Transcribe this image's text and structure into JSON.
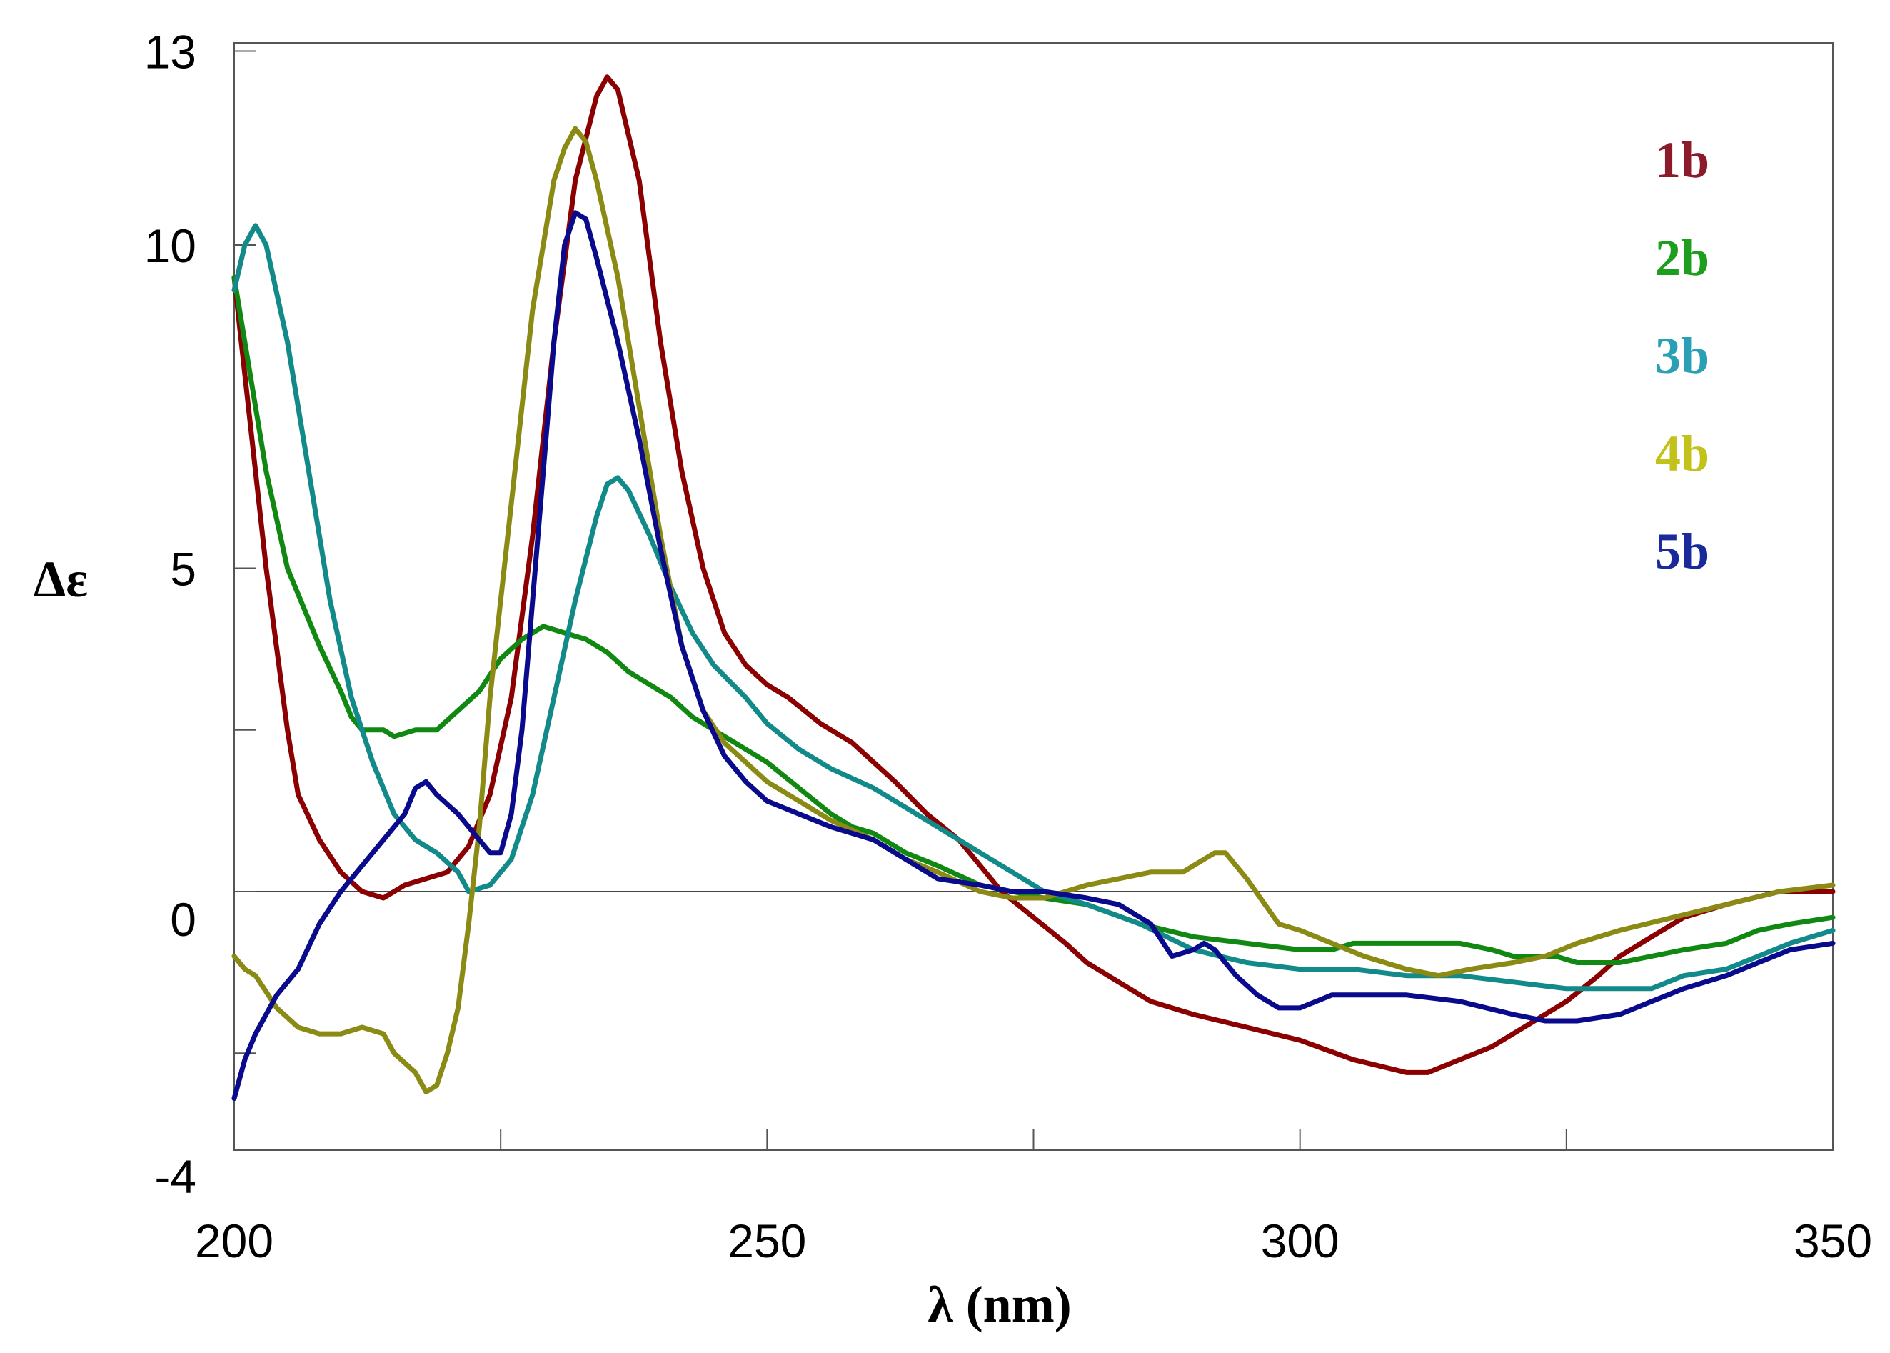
{
  "chart_data": {
    "type": "line",
    "title": "",
    "xlabel": "λ (nm)",
    "ylabel": "Δε",
    "xlim": [
      200,
      350
    ],
    "ylim": [
      -4,
      13.5
    ],
    "xticks": [
      200,
      250,
      300,
      350
    ],
    "xminorticks": [
      225,
      275,
      325
    ],
    "yticks": [
      13,
      10,
      5,
      0,
      -4
    ],
    "yminorticks": [
      2.5,
      -2.5
    ],
    "grid": false,
    "legend": "top-right",
    "series": [
      {
        "name": "1b",
        "color": "#8b0000",
        "label_color": "#8b1a2b",
        "points": [
          [
            200,
            9.5
          ],
          [
            201,
            8
          ],
          [
            203,
            5
          ],
          [
            205,
            2.5
          ],
          [
            206,
            1.5
          ],
          [
            208,
            0.8
          ],
          [
            210,
            0.3
          ],
          [
            212,
            0
          ],
          [
            214,
            -0.1
          ],
          [
            216,
            0.1
          ],
          [
            218,
            0.2
          ],
          [
            220,
            0.3
          ],
          [
            222,
            0.7
          ],
          [
            224,
            1.5
          ],
          [
            226,
            3
          ],
          [
            228,
            5.5
          ],
          [
            230,
            8.5
          ],
          [
            232,
            11
          ],
          [
            234,
            12.3
          ],
          [
            235,
            12.6
          ],
          [
            236,
            12.4
          ],
          [
            238,
            11
          ],
          [
            240,
            8.5
          ],
          [
            242,
            6.5
          ],
          [
            244,
            5
          ],
          [
            246,
            4
          ],
          [
            248,
            3.5
          ],
          [
            250,
            3.2
          ],
          [
            252,
            3
          ],
          [
            255,
            2.6
          ],
          [
            258,
            2.3
          ],
          [
            260,
            2
          ],
          [
            262,
            1.7
          ],
          [
            265,
            1.2
          ],
          [
            268,
            0.8
          ],
          [
            270,
            0.4
          ],
          [
            272,
            0
          ],
          [
            275,
            -0.4
          ],
          [
            278,
            -0.8
          ],
          [
            280,
            -1.1
          ],
          [
            283,
            -1.4
          ],
          [
            286,
            -1.7
          ],
          [
            290,
            -1.9
          ],
          [
            295,
            -2.1
          ],
          [
            300,
            -2.3
          ],
          [
            305,
            -2.6
          ],
          [
            310,
            -2.8
          ],
          [
            312,
            -2.8
          ],
          [
            315,
            -2.6
          ],
          [
            318,
            -2.4
          ],
          [
            320,
            -2.2
          ],
          [
            322,
            -2
          ],
          [
            325,
            -1.7
          ],
          [
            328,
            -1.3
          ],
          [
            330,
            -1
          ],
          [
            333,
            -0.7
          ],
          [
            336,
            -0.4
          ],
          [
            340,
            -0.2
          ],
          [
            345,
            0
          ],
          [
            350,
            0
          ]
        ]
      },
      {
        "name": "2b",
        "color": "#118811",
        "label_color": "#1e9e1e",
        "points": [
          [
            200,
            9.5
          ],
          [
            201,
            8.5
          ],
          [
            203,
            6.5
          ],
          [
            205,
            5
          ],
          [
            208,
            3.8
          ],
          [
            210,
            3.1
          ],
          [
            211,
            2.7
          ],
          [
            212,
            2.5
          ],
          [
            214,
            2.5
          ],
          [
            215,
            2.4
          ],
          [
            217,
            2.5
          ],
          [
            219,
            2.5
          ],
          [
            221,
            2.8
          ],
          [
            223,
            3.1
          ],
          [
            225,
            3.6
          ],
          [
            227,
            3.9
          ],
          [
            229,
            4.1
          ],
          [
            231,
            4
          ],
          [
            233,
            3.9
          ],
          [
            235,
            3.7
          ],
          [
            237,
            3.4
          ],
          [
            239,
            3.2
          ],
          [
            241,
            3
          ],
          [
            243,
            2.7
          ],
          [
            245,
            2.5
          ],
          [
            247,
            2.3
          ],
          [
            250,
            2
          ],
          [
            253,
            1.6
          ],
          [
            256,
            1.2
          ],
          [
            258,
            1
          ],
          [
            260,
            0.9
          ],
          [
            263,
            0.6
          ],
          [
            266,
            0.4
          ],
          [
            270,
            0.1
          ],
          [
            273,
            0
          ],
          [
            276,
            -0.1
          ],
          [
            280,
            -0.2
          ],
          [
            285,
            -0.5
          ],
          [
            290,
            -0.7
          ],
          [
            295,
            -0.8
          ],
          [
            300,
            -0.9
          ],
          [
            303,
            -0.9
          ],
          [
            305,
            -0.8
          ],
          [
            310,
            -0.8
          ],
          [
            315,
            -0.8
          ],
          [
            318,
            -0.9
          ],
          [
            320,
            -1
          ],
          [
            322,
            -1
          ],
          [
            324,
            -1
          ],
          [
            326,
            -1.1
          ],
          [
            328,
            -1.1
          ],
          [
            330,
            -1.1
          ],
          [
            333,
            -1
          ],
          [
            336,
            -0.9
          ],
          [
            340,
            -0.8
          ],
          [
            343,
            -0.6
          ],
          [
            346,
            -0.5
          ],
          [
            350,
            -0.4
          ]
        ]
      },
      {
        "name": "3b",
        "color": "#138a8a",
        "label_color": "#2aa0b5",
        "points": [
          [
            200,
            9.3
          ],
          [
            201,
            10
          ],
          [
            202,
            10.3
          ],
          [
            203,
            10
          ],
          [
            205,
            8.5
          ],
          [
            207,
            6.5
          ],
          [
            209,
            4.5
          ],
          [
            211,
            3
          ],
          [
            213,
            2
          ],
          [
            215,
            1.2
          ],
          [
            217,
            0.8
          ],
          [
            219,
            0.6
          ],
          [
            221,
            0.3
          ],
          [
            222,
            0
          ],
          [
            224,
            0.1
          ],
          [
            226,
            0.5
          ],
          [
            228,
            1.5
          ],
          [
            230,
            3
          ],
          [
            232,
            4.5
          ],
          [
            234,
            5.8
          ],
          [
            235,
            6.3
          ],
          [
            236,
            6.4
          ],
          [
            237,
            6.2
          ],
          [
            239,
            5.5
          ],
          [
            241,
            4.7
          ],
          [
            243,
            4
          ],
          [
            245,
            3.5
          ],
          [
            248,
            3
          ],
          [
            250,
            2.6
          ],
          [
            253,
            2.2
          ],
          [
            256,
            1.9
          ],
          [
            260,
            1.6
          ],
          [
            263,
            1.3
          ],
          [
            266,
            1
          ],
          [
            270,
            0.6
          ],
          [
            273,
            0.3
          ],
          [
            276,
            0
          ],
          [
            280,
            -0.2
          ],
          [
            285,
            -0.5
          ],
          [
            290,
            -0.9
          ],
          [
            295,
            -1.1
          ],
          [
            300,
            -1.2
          ],
          [
            305,
            -1.2
          ],
          [
            310,
            -1.3
          ],
          [
            315,
            -1.3
          ],
          [
            320,
            -1.4
          ],
          [
            325,
            -1.5
          ],
          [
            330,
            -1.5
          ],
          [
            333,
            -1.5
          ],
          [
            336,
            -1.3
          ],
          [
            340,
            -1.2
          ],
          [
            343,
            -1
          ],
          [
            346,
            -0.8
          ],
          [
            350,
            -0.6
          ]
        ]
      },
      {
        "name": "4b",
        "color": "#8a8a14",
        "label_color": "#c2c21a",
        "points": [
          [
            200,
            -1
          ],
          [
            201,
            -1.2
          ],
          [
            202,
            -1.3
          ],
          [
            204,
            -1.8
          ],
          [
            206,
            -2.1
          ],
          [
            208,
            -2.2
          ],
          [
            210,
            -2.2
          ],
          [
            212,
            -2.1
          ],
          [
            214,
            -2.2
          ],
          [
            215,
            -2.5
          ],
          [
            217,
            -2.8
          ],
          [
            218,
            -3.1
          ],
          [
            219,
            -3
          ],
          [
            220,
            -2.5
          ],
          [
            221,
            -1.8
          ],
          [
            222,
            -0.5
          ],
          [
            223,
            1
          ],
          [
            224,
            3
          ],
          [
            226,
            6
          ],
          [
            228,
            9
          ],
          [
            230,
            11
          ],
          [
            231,
            11.5
          ],
          [
            232,
            11.8
          ],
          [
            233,
            11.6
          ],
          [
            234,
            11
          ],
          [
            236,
            9.5
          ],
          [
            238,
            7.5
          ],
          [
            240,
            5.5
          ],
          [
            242,
            3.8
          ],
          [
            244,
            2.8
          ],
          [
            246,
            2.3
          ],
          [
            248,
            2
          ],
          [
            250,
            1.7
          ],
          [
            253,
            1.4
          ],
          [
            256,
            1.1
          ],
          [
            260,
            0.8
          ],
          [
            263,
            0.5
          ],
          [
            266,
            0.3
          ],
          [
            270,
            0
          ],
          [
            273,
            -0.1
          ],
          [
            276,
            -0.1
          ],
          [
            280,
            0.1
          ],
          [
            283,
            0.2
          ],
          [
            286,
            0.3
          ],
          [
            289,
            0.3
          ],
          [
            291,
            0.5
          ],
          [
            292,
            0.6
          ],
          [
            293,
            0.6
          ],
          [
            295,
            0.2
          ],
          [
            298,
            -0.5
          ],
          [
            300,
            -0.6
          ],
          [
            303,
            -0.8
          ],
          [
            306,
            -1
          ],
          [
            310,
            -1.2
          ],
          [
            313,
            -1.3
          ],
          [
            316,
            -1.2
          ],
          [
            320,
            -1.1
          ],
          [
            323,
            -1
          ],
          [
            326,
            -0.8
          ],
          [
            330,
            -0.6
          ],
          [
            335,
            -0.4
          ],
          [
            340,
            -0.2
          ],
          [
            345,
            0
          ],
          [
            350,
            0.1
          ]
        ]
      },
      {
        "name": "5b",
        "color": "#0a0a8c",
        "label_color": "#1a2a9a",
        "points": [
          [
            200,
            -3.2
          ],
          [
            201,
            -2.6
          ],
          [
            202,
            -2.2
          ],
          [
            204,
            -1.6
          ],
          [
            206,
            -1.2
          ],
          [
            208,
            -0.5
          ],
          [
            210,
            0
          ],
          [
            212,
            0.4
          ],
          [
            214,
            0.8
          ],
          [
            216,
            1.2
          ],
          [
            217,
            1.6
          ],
          [
            218,
            1.7
          ],
          [
            219,
            1.5
          ],
          [
            221,
            1.2
          ],
          [
            223,
            0.8
          ],
          [
            224,
            0.6
          ],
          [
            225,
            0.6
          ],
          [
            226,
            1.2
          ],
          [
            227,
            2.5
          ],
          [
            228,
            4.5
          ],
          [
            229,
            6.5
          ],
          [
            230,
            8.5
          ],
          [
            231,
            10
          ],
          [
            232,
            10.5
          ],
          [
            233,
            10.4
          ],
          [
            234,
            9.8
          ],
          [
            236,
            8.5
          ],
          [
            238,
            7
          ],
          [
            240,
            5.3
          ],
          [
            242,
            3.8
          ],
          [
            244,
            2.8
          ],
          [
            246,
            2.1
          ],
          [
            248,
            1.7
          ],
          [
            250,
            1.4
          ],
          [
            253,
            1.2
          ],
          [
            256,
            1
          ],
          [
            258,
            0.9
          ],
          [
            260,
            0.8
          ],
          [
            263,
            0.5
          ],
          [
            266,
            0.2
          ],
          [
            270,
            0.1
          ],
          [
            273,
            0
          ],
          [
            276,
            0
          ],
          [
            280,
            -0.1
          ],
          [
            283,
            -0.2
          ],
          [
            286,
            -0.5
          ],
          [
            288,
            -1
          ],
          [
            290,
            -0.9
          ],
          [
            291,
            -0.8
          ],
          [
            292,
            -0.9
          ],
          [
            294,
            -1.3
          ],
          [
            296,
            -1.6
          ],
          [
            298,
            -1.8
          ],
          [
            300,
            -1.8
          ],
          [
            303,
            -1.6
          ],
          [
            306,
            -1.6
          ],
          [
            310,
            -1.6
          ],
          [
            315,
            -1.7
          ],
          [
            320,
            -1.9
          ],
          [
            323,
            -2
          ],
          [
            326,
            -2
          ],
          [
            330,
            -1.9
          ],
          [
            333,
            -1.7
          ],
          [
            336,
            -1.5
          ],
          [
            340,
            -1.3
          ],
          [
            343,
            -1.1
          ],
          [
            346,
            -0.9
          ],
          [
            350,
            -0.8
          ]
        ]
      }
    ]
  }
}
